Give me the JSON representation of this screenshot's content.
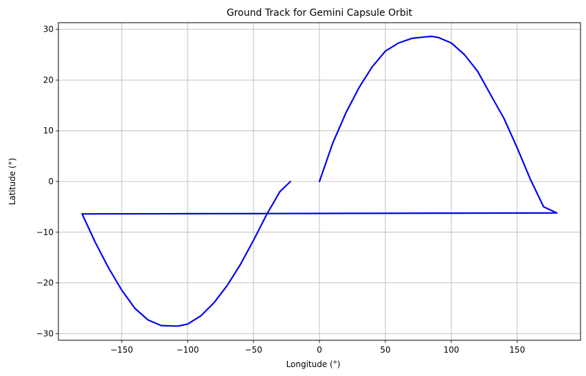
{
  "chart_data": {
    "type": "line",
    "title": "Ground Track for Gemini Capsule Orbit",
    "xlabel": "Longitude (°)",
    "ylabel": "Latitude (°)",
    "xlim": [
      -198,
      198
    ],
    "ylim": [
      -31.3,
      31.3
    ],
    "xticks": [
      -150,
      -100,
      -50,
      0,
      50,
      100,
      150
    ],
    "yticks": [
      -30,
      -20,
      -10,
      0,
      10,
      20,
      30
    ],
    "xtick_labels": [
      "−150",
      "−100",
      "−50",
      "0",
      "50",
      "100",
      "150"
    ],
    "ytick_labels": [
      "−30",
      "−20",
      "−10",
      "0",
      "10",
      "20",
      "30"
    ],
    "grid": true,
    "series": [
      {
        "color": "#0000ee",
        "x": [
          0,
          10,
          20,
          30,
          40,
          50,
          60,
          70,
          80,
          85,
          90,
          100,
          110,
          120,
          130,
          140,
          150,
          160,
          170,
          180,
          100,
          0,
          -100,
          -180,
          -170,
          -160,
          -150,
          -140,
          -130,
          -120,
          -110,
          -107,
          -100,
          -90,
          -80,
          -70,
          -60,
          -50,
          -40,
          -30,
          -22
        ],
        "y": [
          0,
          7.5,
          13.5,
          18.5,
          22.6,
          25.7,
          27.3,
          28.2,
          28.5,
          28.6,
          28.4,
          27.3,
          25.0,
          21.7,
          17.0,
          12.4,
          6.6,
          0.4,
          -5.0,
          -6.2,
          -6.25,
          -6.3,
          -6.35,
          -6.4,
          -12.0,
          -17.0,
          -21.4,
          -25.0,
          -27.3,
          -28.4,
          -28.5,
          -28.5,
          -28.1,
          -26.5,
          -23.9,
          -20.5,
          -16.4,
          -11.6,
          -6.5,
          -2.0,
          0
        ]
      }
    ]
  }
}
